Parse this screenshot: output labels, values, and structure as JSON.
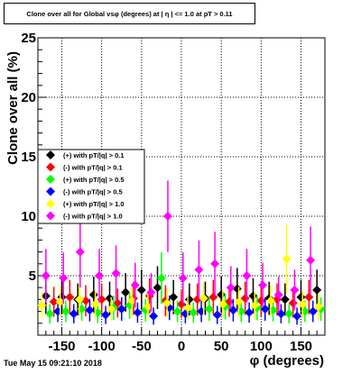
{
  "title": "Clone  over all for Global vsφ (degrees) at | η | <= 1.0 at pT > 0.11",
  "footer": "Tue May 15 09:21:10 2018",
  "chart_data": {
    "type": "scatter",
    "xlabel": "φ (degrees)",
    "ylabel": "Clone  over all (%)",
    "xlim": [
      -180,
      180
    ],
    "ylim": [
      0,
      25
    ],
    "x_ticks": [
      -150,
      -100,
      -50,
      0,
      50,
      100,
      150
    ],
    "y_ticks": [
      5,
      10,
      15,
      20,
      25
    ],
    "grid": true,
    "legend_position": "left-middle",
    "series": [
      {
        "name": "(+) with pT/|q| > 0.1",
        "color": "#000000",
        "marker": "diamond",
        "x": [
          -170,
          -150,
          -130,
          -110,
          -90,
          -70,
          -50,
          -30,
          -10,
          10,
          30,
          50,
          70,
          90,
          110,
          130,
          150,
          170
        ],
        "y": [
          3.3,
          3.2,
          3.0,
          3.4,
          3.1,
          3.6,
          3.8,
          4.0,
          3.2,
          3.0,
          3.1,
          3.4,
          3.9,
          3.3,
          3.1,
          3.0,
          3.2,
          3.8
        ]
      },
      {
        "name": "(-) with pT/|q| > 0.1",
        "color": "#ff0000",
        "marker": "diamond",
        "x": [
          -160,
          -140,
          -120,
          -100,
          -80,
          -60,
          -40,
          -20,
          0,
          20,
          40,
          60,
          80,
          100,
          120,
          140,
          160
        ],
        "y": [
          2.8,
          3.2,
          2.9,
          3.0,
          2.7,
          3.1,
          3.3,
          2.9,
          2.6,
          3.0,
          3.2,
          2.8,
          3.1,
          2.9,
          3.0,
          2.7,
          3.2
        ]
      },
      {
        "name": "(+) with pT/|q| > 0.5",
        "color": "#00ff00",
        "marker": "diamond",
        "x": [
          -165,
          -145,
          -125,
          -105,
          -85,
          -65,
          -45,
          -25,
          -5,
          15,
          35,
          55,
          75,
          95,
          115,
          135,
          155,
          175
        ],
        "y": [
          1.8,
          2.0,
          2.2,
          1.9,
          2.3,
          2.5,
          2.1,
          4.8,
          2.0,
          1.9,
          2.2,
          2.4,
          2.0,
          2.3,
          2.1,
          1.8,
          2.0,
          2.2
        ]
      },
      {
        "name": "(-) with pT/|q| > 0.5",
        "color": "#0000ff",
        "marker": "diamond",
        "x": [
          -155,
          -135,
          -115,
          -95,
          -75,
          -55,
          -35,
          -15,
          5,
          25,
          45,
          65,
          85,
          105,
          125,
          145,
          165
        ],
        "y": [
          2.0,
          1.8,
          2.1,
          1.7,
          2.2,
          1.9,
          1.6,
          2.3,
          1.8,
          2.0,
          1.7,
          2.1,
          1.9,
          2.2,
          1.8,
          1.6,
          2.0
        ]
      },
      {
        "name": "(+) with pT/|q| > 1.0",
        "color": "#ffff00",
        "marker": "diamond",
        "x": [
          -175,
          -152,
          -128,
          -108,
          -88,
          -62,
          -42,
          -18,
          8,
          28,
          52,
          72,
          92,
          112,
          132,
          152,
          172
        ],
        "y": [
          2.5,
          2.8,
          3.0,
          2.6,
          2.2,
          2.9,
          2.4,
          2.7,
          2.3,
          3.1,
          2.6,
          2.8,
          2.5,
          2.9,
          6.4,
          2.6,
          2.4
        ]
      },
      {
        "name": "(-) with pT/|q| > 1.0",
        "color": "#ff00ff",
        "marker": "diamond",
        "x": [
          -170,
          -148,
          -127,
          -103,
          -82,
          -58,
          -38,
          -17,
          2,
          22,
          42,
          62,
          82,
          102,
          122,
          142,
          162
        ],
        "y": [
          5.0,
          4.8,
          7.0,
          5.0,
          5.2,
          4.2,
          3.6,
          10.0,
          4.8,
          5.5,
          6.0,
          4.0,
          5.0,
          4.2,
          3.4,
          3.8,
          6.3
        ]
      }
    ]
  }
}
